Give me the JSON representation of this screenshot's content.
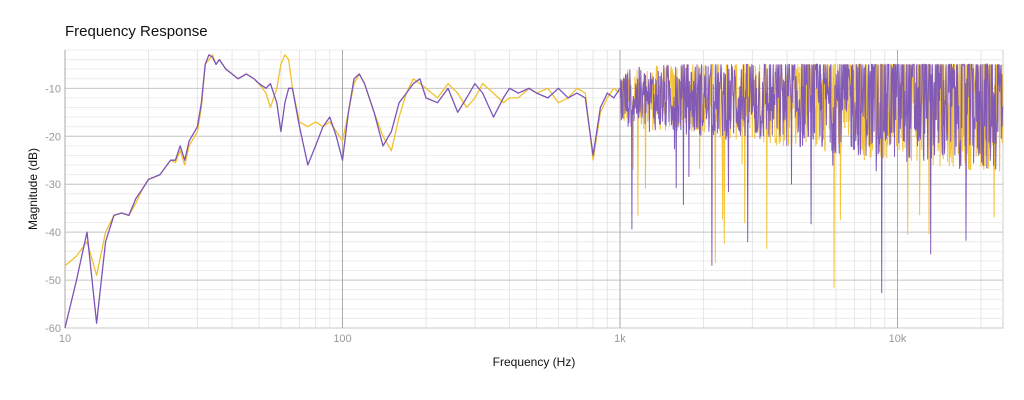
{
  "chart_data": {
    "type": "line",
    "title": "Frequency Response",
    "xlabel": "Frequency (Hz)",
    "ylabel": "Magnitude (dB)",
    "xscale": "log",
    "xlim": [
      10,
      24000
    ],
    "ylim": [
      -60,
      -2
    ],
    "grid": true,
    "legend": "none",
    "x_ticks": [
      {
        "value": 10,
        "label": "10"
      },
      {
        "value": 100,
        "label": "100"
      },
      {
        "value": 1000,
        "label": "1k"
      },
      {
        "value": 10000,
        "label": "10k"
      }
    ],
    "y_ticks": [
      {
        "value": -10,
        "label": "-10"
      },
      {
        "value": -20,
        "label": "-20"
      },
      {
        "value": -30,
        "label": "-30"
      },
      {
        "value": -40,
        "label": "-40"
      },
      {
        "value": -50,
        "label": "-50"
      },
      {
        "value": -60,
        "label": "-60"
      }
    ],
    "series": [
      {
        "color": "#f2c12e",
        "points": [
          [
            10,
            -47
          ],
          [
            11,
            -45
          ],
          [
            12,
            -42
          ],
          [
            13,
            -49
          ],
          [
            14,
            -40
          ],
          [
            15,
            -36.5
          ],
          [
            16,
            -36
          ],
          [
            17,
            -36.5
          ],
          [
            18,
            -34
          ],
          [
            19,
            -31
          ],
          [
            20,
            -29
          ],
          [
            21,
            -28.5
          ],
          [
            22,
            -28
          ],
          [
            24,
            -25
          ],
          [
            25,
            -25.5
          ],
          [
            26,
            -23
          ],
          [
            27,
            -26
          ],
          [
            28,
            -22
          ],
          [
            30,
            -19
          ],
          [
            31,
            -14
          ],
          [
            32,
            -5
          ],
          [
            33,
            -4
          ],
          [
            34,
            -3
          ],
          [
            35,
            -5
          ],
          [
            36,
            -4
          ],
          [
            38,
            -6
          ],
          [
            40,
            -7
          ],
          [
            42,
            -8
          ],
          [
            45,
            -7
          ],
          [
            48,
            -8
          ],
          [
            50,
            -9
          ],
          [
            53,
            -11
          ],
          [
            55,
            -14
          ],
          [
            58,
            -10
          ],
          [
            60,
            -5
          ],
          [
            62,
            -3
          ],
          [
            64,
            -4
          ],
          [
            66,
            -10
          ],
          [
            70,
            -17
          ],
          [
            75,
            -18
          ],
          [
            80,
            -17
          ],
          [
            85,
            -18
          ],
          [
            90,
            -17
          ],
          [
            95,
            -19
          ],
          [
            100,
            -21
          ],
          [
            105,
            -15
          ],
          [
            110,
            -9
          ],
          [
            115,
            -7
          ],
          [
            120,
            -9
          ],
          [
            130,
            -15
          ],
          [
            140,
            -20
          ],
          [
            150,
            -23
          ],
          [
            160,
            -16
          ],
          [
            170,
            -11
          ],
          [
            180,
            -8
          ],
          [
            190,
            -9
          ],
          [
            200,
            -10
          ],
          [
            220,
            -12
          ],
          [
            240,
            -9
          ],
          [
            260,
            -11
          ],
          [
            280,
            -14
          ],
          [
            300,
            -12
          ],
          [
            320,
            -9
          ],
          [
            350,
            -11
          ],
          [
            380,
            -13
          ],
          [
            400,
            -12
          ],
          [
            430,
            -12
          ],
          [
            470,
            -10
          ],
          [
            500,
            -11
          ],
          [
            550,
            -10
          ],
          [
            600,
            -13
          ],
          [
            650,
            -12
          ],
          [
            700,
            -10
          ],
          [
            750,
            -11
          ],
          [
            800,
            -25
          ],
          [
            850,
            -15
          ],
          [
            900,
            -12
          ],
          [
            950,
            -10
          ],
          [
            1000,
            -11
          ]
        ]
      },
      {
        "color": "#7b54ba",
        "points": [
          [
            10,
            -60
          ],
          [
            11,
            -50
          ],
          [
            12,
            -40
          ],
          [
            13,
            -59
          ],
          [
            14,
            -42
          ],
          [
            15,
            -36.5
          ],
          [
            16,
            -36
          ],
          [
            17,
            -36.5
          ],
          [
            18,
            -33
          ],
          [
            19,
            -31
          ],
          [
            20,
            -29
          ],
          [
            21,
            -28.5
          ],
          [
            22,
            -28
          ],
          [
            24,
            -25
          ],
          [
            25,
            -25
          ],
          [
            26,
            -22
          ],
          [
            27,
            -25
          ],
          [
            28,
            -21
          ],
          [
            30,
            -18
          ],
          [
            31,
            -13
          ],
          [
            32,
            -5
          ],
          [
            33,
            -3
          ],
          [
            34,
            -3.5
          ],
          [
            35,
            -5
          ],
          [
            36,
            -4
          ],
          [
            38,
            -6
          ],
          [
            40,
            -7
          ],
          [
            42,
            -8
          ],
          [
            45,
            -7
          ],
          [
            48,
            -8
          ],
          [
            50,
            -9
          ],
          [
            53,
            -10
          ],
          [
            55,
            -9
          ],
          [
            58,
            -13
          ],
          [
            60,
            -19
          ],
          [
            62,
            -13
          ],
          [
            64,
            -10
          ],
          [
            66,
            -10
          ],
          [
            70,
            -18
          ],
          [
            75,
            -26
          ],
          [
            80,
            -22
          ],
          [
            85,
            -18
          ],
          [
            90,
            -16
          ],
          [
            95,
            -20
          ],
          [
            100,
            -25
          ],
          [
            105,
            -15
          ],
          [
            110,
            -8
          ],
          [
            115,
            -7
          ],
          [
            120,
            -9
          ],
          [
            130,
            -15
          ],
          [
            140,
            -22
          ],
          [
            150,
            -19
          ],
          [
            160,
            -13
          ],
          [
            170,
            -11
          ],
          [
            180,
            -9
          ],
          [
            190,
            -8
          ],
          [
            200,
            -12
          ],
          [
            220,
            -13
          ],
          [
            240,
            -10
          ],
          [
            260,
            -15
          ],
          [
            280,
            -12
          ],
          [
            300,
            -9
          ],
          [
            320,
            -11
          ],
          [
            350,
            -16
          ],
          [
            380,
            -12
          ],
          [
            400,
            -10
          ],
          [
            430,
            -11
          ],
          [
            470,
            -10
          ],
          [
            500,
            -11
          ],
          [
            550,
            -12
          ],
          [
            600,
            -10
          ],
          [
            650,
            -12
          ],
          [
            700,
            -11
          ],
          [
            750,
            -12
          ],
          [
            800,
            -24
          ],
          [
            850,
            -14
          ],
          [
            900,
            -11
          ],
          [
            950,
            -12
          ],
          [
            1000,
            -10
          ]
        ]
      }
    ]
  }
}
